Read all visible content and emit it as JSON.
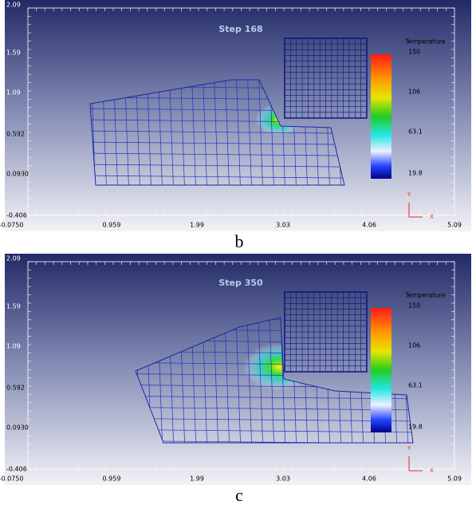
{
  "panels": [
    {
      "title": "Step 168",
      "xticks": [
        "-0.0750",
        "0.959",
        "1.99",
        "3.03",
        "4.06",
        "5.09"
      ],
      "yticks": [
        "2.09",
        "1.59",
        "1.09",
        "0.592",
        "0.0930",
        "-0.406"
      ],
      "legend_title": "Temperature",
      "legend_labels": [
        "150",
        "106",
        "63.1",
        "19.8"
      ],
      "axis_y": "Y",
      "axis_x": "X",
      "caption": "b"
    },
    {
      "title": "Step 350",
      "xticks": [
        "-0.0750",
        "0.959",
        "1.99",
        "3.03",
        "4.06",
        "5.09"
      ],
      "yticks": [
        "2.09",
        "1.59",
        "1.09",
        "0.592",
        "0.0930",
        "-0.406"
      ],
      "legend_title": "Temperature",
      "legend_labels": [
        "150",
        "106",
        "63.1",
        "19.8"
      ],
      "axis_y": "Y",
      "axis_x": "X",
      "caption": "c"
    }
  ]
}
